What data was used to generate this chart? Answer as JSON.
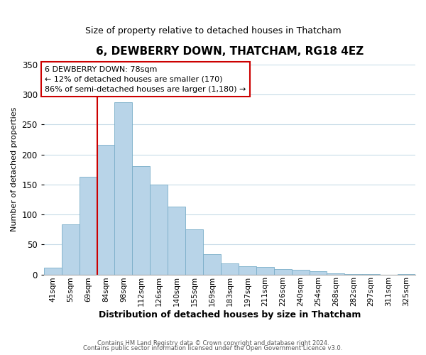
{
  "title": "6, DEWBERRY DOWN, THATCHAM, RG18 4EZ",
  "subtitle": "Size of property relative to detached houses in Thatcham",
  "xlabel": "Distribution of detached houses by size in Thatcham",
  "ylabel": "Number of detached properties",
  "bar_labels": [
    "41sqm",
    "55sqm",
    "69sqm",
    "84sqm",
    "98sqm",
    "112sqm",
    "126sqm",
    "140sqm",
    "155sqm",
    "169sqm",
    "183sqm",
    "197sqm",
    "211sqm",
    "226sqm",
    "240sqm",
    "254sqm",
    "268sqm",
    "282sqm",
    "297sqm",
    "311sqm",
    "325sqm"
  ],
  "bar_values": [
    11,
    84,
    163,
    216,
    287,
    181,
    150,
    113,
    75,
    34,
    18,
    14,
    12,
    9,
    8,
    5,
    2,
    1,
    1,
    0,
    1
  ],
  "bar_color": "#b8d4e8",
  "bar_edge_color": "#7aaec8",
  "vline_color": "#cc0000",
  "annotation_title": "6 DEWBERRY DOWN: 78sqm",
  "annotation_line1": "← 12% of detached houses are smaller (170)",
  "annotation_line2": "86% of semi-detached houses are larger (1,180) →",
  "annotation_box_color": "#ffffff",
  "annotation_box_edge": "#cc0000",
  "ylim": [
    0,
    350
  ],
  "yticks": [
    0,
    50,
    100,
    150,
    200,
    250,
    300,
    350
  ],
  "footer1": "Contains HM Land Registry data © Crown copyright and database right 2024.",
  "footer2": "Contains public sector information licensed under the Open Government Licence v3.0."
}
